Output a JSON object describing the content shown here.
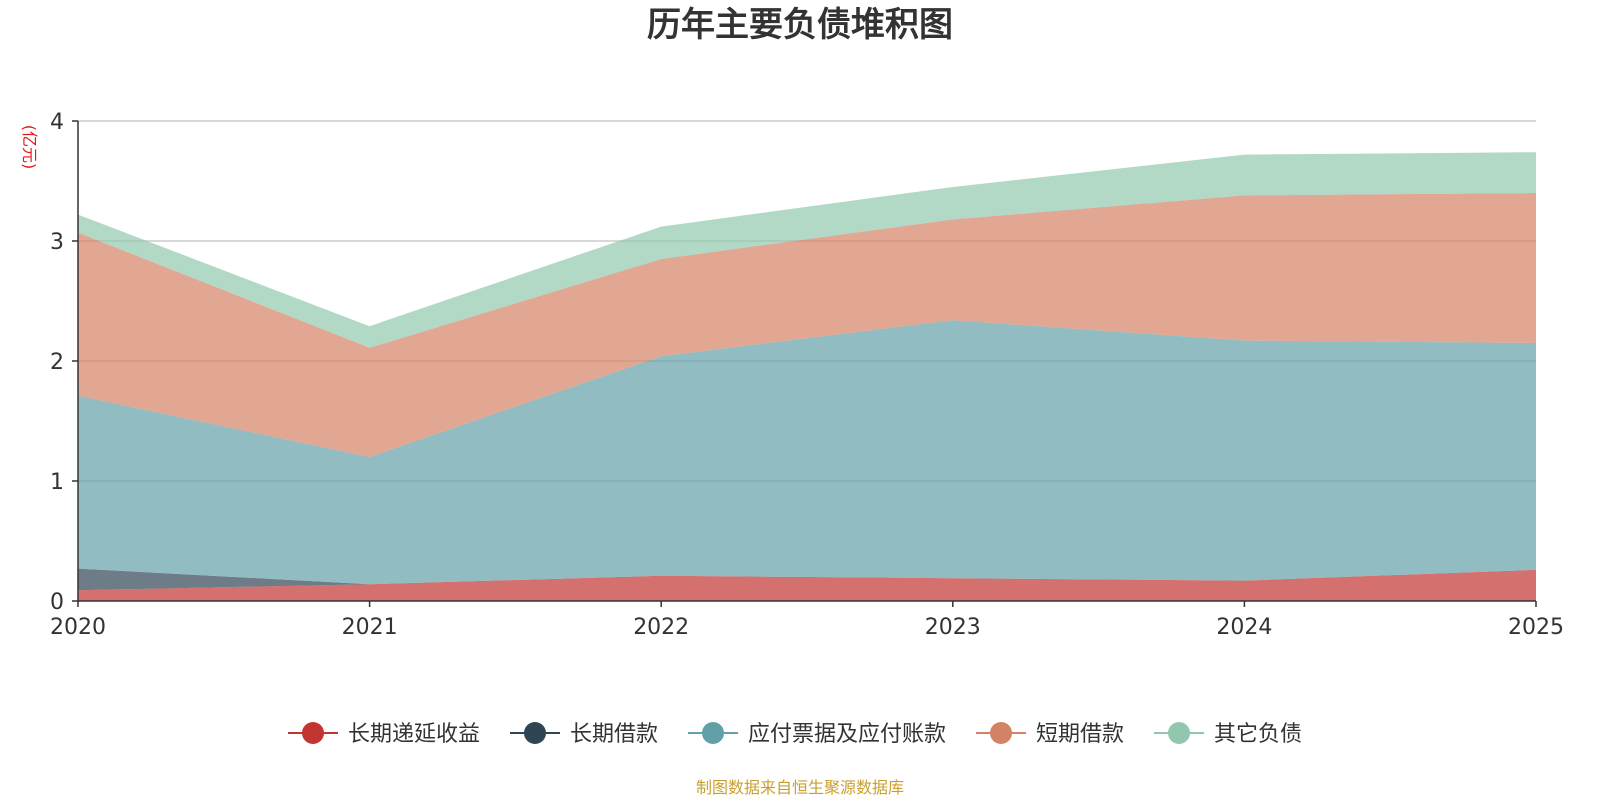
{
  "chart_data": {
    "type": "area",
    "stacked": true,
    "title": "历年主要负债堆积图",
    "unit_label": "(亿元)",
    "x": [
      "2020",
      "2021",
      "2022",
      "2023",
      "2024",
      "2025"
    ],
    "ylim": [
      0,
      4
    ],
    "yticks": [
      "0",
      "1",
      "2",
      "3",
      "4"
    ],
    "grid": true,
    "legend_position": "bottom",
    "series": [
      {
        "name": "长期递延收益",
        "color": "#c23531",
        "values": [
          0.09,
          0.14,
          0.21,
          0.19,
          0.17,
          0.26
        ]
      },
      {
        "name": "长期借款",
        "color": "#2f4554",
        "values": [
          0.18,
          0.0,
          0.0,
          0.0,
          0.0,
          0.0
        ]
      },
      {
        "name": "应付票据及应付账款",
        "color": "#61a0a8",
        "values": [
          1.44,
          1.06,
          1.83,
          2.15,
          2.0,
          1.89
        ]
      },
      {
        "name": "短期借款",
        "color": "#d48265",
        "values": [
          1.36,
          0.91,
          0.81,
          0.84,
          1.21,
          1.25
        ]
      },
      {
        "name": "其它负债",
        "color": "#91c7ae",
        "values": [
          0.15,
          0.18,
          0.27,
          0.27,
          0.34,
          0.34
        ]
      }
    ],
    "source_note": "制图数据来自恒生聚源数据库",
    "colors": {
      "unit": "#e0191f",
      "source": "#c9a030",
      "grid": "#cccccc",
      "axis": "#333333"
    }
  }
}
